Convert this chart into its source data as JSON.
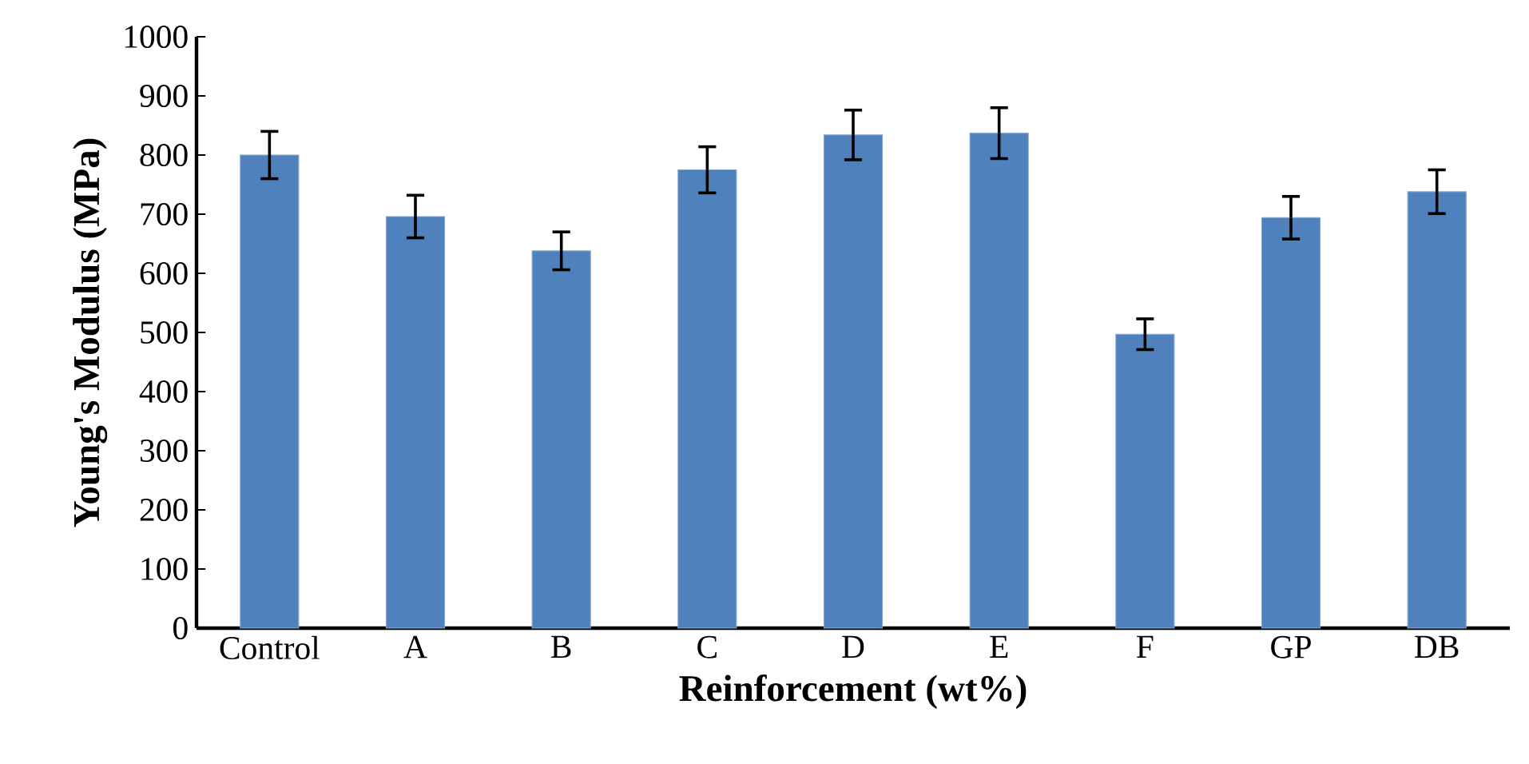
{
  "chart_data": {
    "type": "bar",
    "xlabel": "Reinforcement (wt%)",
    "ylabel": "Young's Modulus (MPa)",
    "categories": [
      "Control",
      "A",
      "B",
      "C",
      "D",
      "E",
      "F",
      "GP",
      "DB"
    ],
    "values": [
      800,
      696,
      638,
      775,
      834,
      837,
      497,
      694,
      738
    ],
    "errors": [
      40,
      36,
      32,
      39,
      42,
      43,
      26,
      36,
      37
    ],
    "color": "#4f81bd",
    "ylim": [
      0,
      1000
    ],
    "yticks": [
      0,
      100,
      200,
      300,
      400,
      500,
      600,
      700,
      800,
      900,
      1000
    ],
    "grid": false
  }
}
